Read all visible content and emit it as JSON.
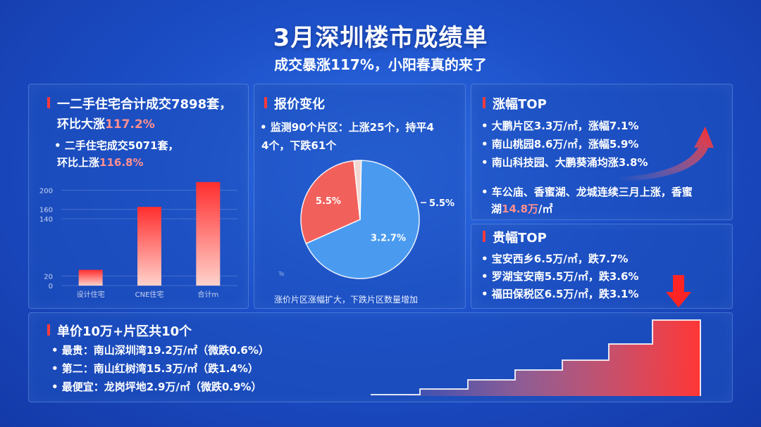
{
  "header": {
    "title": "3月深圳楼市成绩单",
    "subtitle": "成交暴涨117%，小阳春真的来了"
  },
  "volume": {
    "heading_a": "一二手住宅合计成交7898套，",
    "heading_b_prefix": "环比大涨",
    "heading_b_value": "117.2%",
    "line1": "• 二手住宅成交5071套，",
    "line2_prefix": "环比上涨",
    "line2_value": "116.8%"
  },
  "price_change": {
    "heading": "报价变化",
    "line1": "• 监测90个片区：上涨25个，持平4",
    "line2": "4个，下跌61个",
    "footnote": "涨价片区涨幅扩大，下跌片区数量增加"
  },
  "rise_top": {
    "heading": "涨幅TOP",
    "items": [
      "• 大鹏片区3.3万/㎡，涨幅7.1%",
      "• 南山桃园8.6万/㎡，涨幅5.9%",
      "• 南山科技园、大鹏葵涌均涨3.8%"
    ],
    "note_line1": "• 车公庙、香蜜湖、龙城连续三月上涨，香蜜",
    "note_line2_prefix": "湖",
    "note_line2_value": "14.8万",
    "note_line2_suffix": "/㎡"
  },
  "fall_top": {
    "heading": "贵幅TOP",
    "items": [
      "• 宝安西乡6.5万/㎡，跌7.7%",
      "• 罗湖宝安南5.5万/㎡，跌3.6%",
      "• 福田保税区6.5万/㎡，跌3.1%"
    ]
  },
  "unit_price": {
    "heading": "单价10万+片区共10个",
    "items": [
      "• 最贵：南山深圳湾19.2万/㎡（微跌0.6%）",
      "• 第二：南山红树湾15.3万/㎡（跌1.4%）",
      "• 最便宜：龙岗坪地2.9万/㎡（微跌0.9%）"
    ]
  },
  "colors": {
    "accent_red": "#ff3b3b",
    "highlight_red": "#ff8f8f",
    "pie_blue": "#4a9bf0",
    "pie_red": "#f2605c",
    "pie_light": "#f1d6d2"
  },
  "chart_data": [
    {
      "type": "bar",
      "categories": [
        "设计住宅",
        "CNE住宅",
        "合计m"
      ],
      "values": [
        33,
        165,
        217
      ],
      "ylim": [
        0,
        230
      ],
      "yticks": [
        0,
        20,
        140,
        160,
        200
      ],
      "title": "",
      "xlabel": "",
      "ylabel": "",
      "grid": true
    },
    {
      "type": "pie",
      "slices": [
        {
          "label": "3.2.7%",
          "value": 68
        },
        {
          "label": "5.5%",
          "value": 30
        },
        {
          "label": "",
          "value": 2
        }
      ],
      "outside_label": "5.5%",
      "stray_label": "Te"
    }
  ]
}
